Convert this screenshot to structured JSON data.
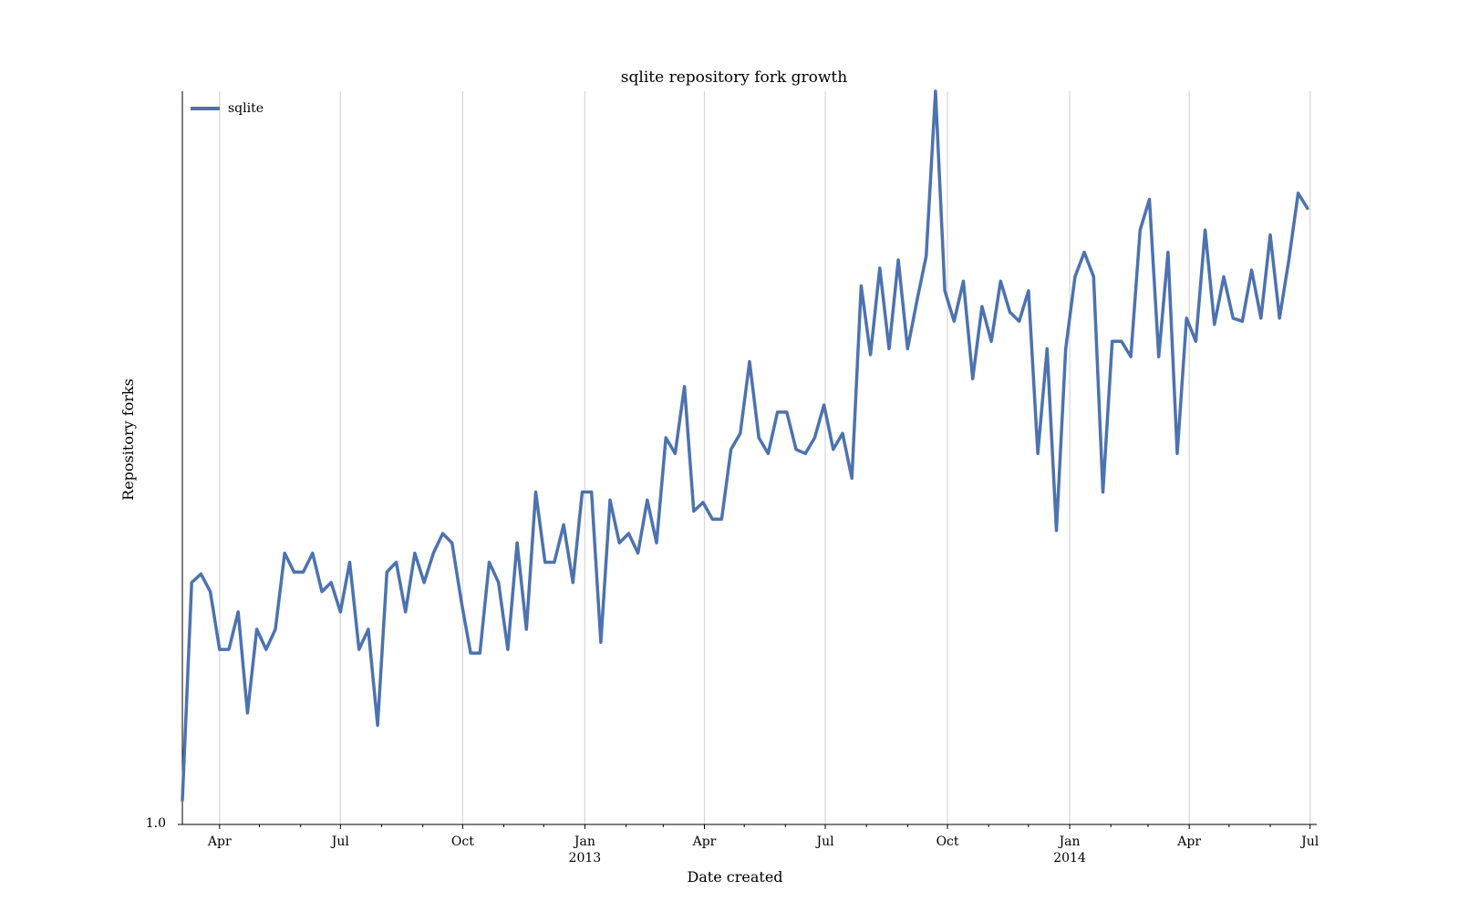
{
  "chart_data": {
    "type": "line",
    "title": "sqlite repository fork growth",
    "xlabel": "Date created",
    "ylabel": "Repository forks",
    "x_axis": {
      "type": "date",
      "range": [
        "2012-03-04",
        "2014-07-06"
      ],
      "ticks": [
        {
          "date": "2012-04-01",
          "label": "Apr",
          "sublabel": ""
        },
        {
          "date": "2012-07-01",
          "label": "Jul",
          "sublabel": ""
        },
        {
          "date": "2012-10-01",
          "label": "Oct",
          "sublabel": ""
        },
        {
          "date": "2013-01-01",
          "label": "Jan",
          "sublabel": "2013"
        },
        {
          "date": "2013-04-01",
          "label": "Apr",
          "sublabel": ""
        },
        {
          "date": "2013-07-01",
          "label": "Jul",
          "sublabel": ""
        },
        {
          "date": "2013-10-01",
          "label": "Oct",
          "sublabel": ""
        },
        {
          "date": "2014-01-01",
          "label": "Jan",
          "sublabel": "2014"
        },
        {
          "date": "2014-04-01",
          "label": "Apr",
          "sublabel": ""
        },
        {
          "date": "2014-07-01",
          "label": "Jul",
          "sublabel": ""
        }
      ],
      "minor_ticks": [
        "2012-05-01",
        "2012-06-01",
        "2012-08-01",
        "2012-09-01",
        "2012-11-01",
        "2012-12-01",
        "2013-02-01",
        "2013-03-01",
        "2013-05-01",
        "2013-06-01",
        "2013-08-01",
        "2013-09-01",
        "2013-11-01",
        "2013-12-01",
        "2014-02-01",
        "2014-03-01",
        "2014-05-01",
        "2014-06-01"
      ]
    },
    "y_axis": {
      "scale": "log",
      "range": [
        1.0,
        240
      ],
      "ticks": [
        {
          "value": 1.0,
          "label": "1.0"
        }
      ]
    },
    "grid": {
      "x": true,
      "y": false
    },
    "legend": {
      "position": "top-left"
    },
    "series": [
      {
        "name": "sqlite",
        "color": "#4c72b0",
        "start_date": "2012-03-04",
        "step_days": 7,
        "values": [
          1.2,
          6.1,
          6.5,
          5.7,
          3.7,
          3.7,
          4.9,
          2.3,
          4.3,
          3.7,
          4.3,
          7.6,
          6.6,
          6.6,
          7.6,
          5.7,
          6.1,
          4.9,
          7.1,
          3.7,
          4.3,
          2.1,
          6.6,
          7.1,
          4.9,
          7.6,
          6.1,
          7.6,
          8.8,
          8.2,
          5.3,
          3.6,
          3.6,
          7.1,
          6.1,
          3.7,
          8.2,
          4.3,
          12.0,
          7.1,
          7.1,
          9.4,
          6.1,
          12.0,
          12.0,
          3.9,
          11.3,
          8.2,
          8.8,
          7.6,
          11.3,
          8.2,
          18.0,
          16.0,
          26.4,
          10.4,
          11.1,
          9.8,
          9.8,
          16.5,
          18.6,
          31.8,
          18.0,
          16.0,
          21.8,
          21.8,
          16.5,
          16.0,
          18.0,
          23.0,
          16.5,
          18.6,
          13.3,
          56.0,
          33.5,
          64.0,
          35.0,
          68.0,
          35.0,
          50.0,
          70.0,
          240.0,
          54.0,
          43.0,
          58.0,
          28.0,
          48.0,
          37.0,
          58.0,
          46.0,
          43.0,
          54.0,
          16.0,
          35.0,
          9.0,
          35.0,
          60.0,
          72.0,
          60.0,
          12.0,
          37.0,
          37.0,
          33.0,
          85.0,
          107.0,
          33.0,
          72.0,
          16.0,
          44.0,
          37.0,
          85.0,
          42.0,
          60.0,
          44.0,
          43.0,
          63.0,
          44.0,
          82.0,
          44.0,
          68.0,
          112.0,
          100.0
        ]
      }
    ]
  }
}
